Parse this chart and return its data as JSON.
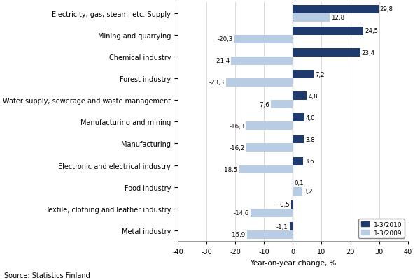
{
  "categories": [
    "Electricity, gas, steam, etc. Supply",
    "Mining and quarrying",
    "Chemical industry",
    "Forest industry",
    "Water supply, sewerage and waste management",
    "Manufacturing and mining",
    "Manufacturing",
    "Electronic and electrical industry",
    "Food industry",
    "Textile, clothing and leather industry",
    "Metal industry"
  ],
  "values_2010": [
    29.8,
    24.5,
    23.4,
    7.2,
    4.8,
    4.0,
    3.8,
    3.6,
    0.1,
    -0.5,
    -1.1
  ],
  "values_2009": [
    12.8,
    -20.3,
    -21.4,
    -23.3,
    -7.6,
    -16.3,
    -16.2,
    -18.5,
    3.2,
    -14.6,
    -15.9
  ],
  "color_2010": "#1F3B6E",
  "color_2009": "#B8CCE4",
  "xlim": [
    -40,
    40
  ],
  "xticks": [
    -40,
    -30,
    -20,
    -10,
    0,
    10,
    20,
    30,
    40
  ],
  "xlabel": "Year-on-year change, %",
  "legend_2010": "1-3/2010",
  "legend_2009": "1-3/2009",
  "source": "Source: Statistics Finland",
  "bar_height": 0.38
}
